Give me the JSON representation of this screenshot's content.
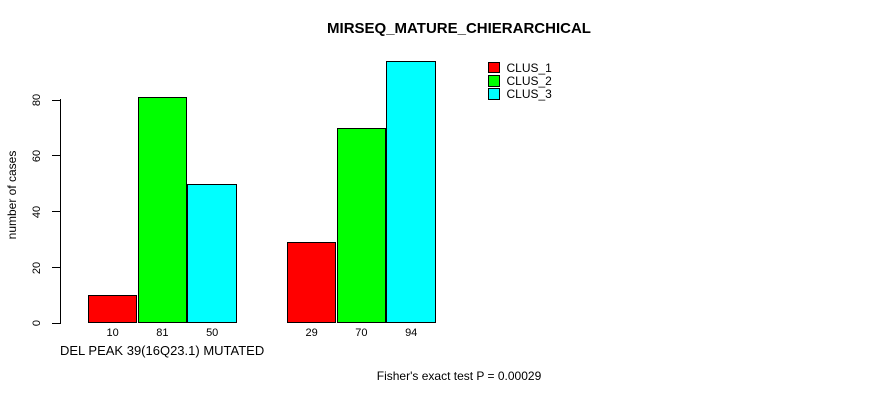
{
  "chart_data": {
    "type": "bar",
    "title": "MIRSEQ_MATURE_CHIERARCHICAL",
    "ylabel": "number of cases",
    "xlabel": "DEL PEAK 39(16Q23.1) MUTATED",
    "annotation": "Fisher's exact test P = 0.00029",
    "yticks": [
      0,
      20,
      40,
      60,
      80
    ],
    "ylim": [
      0,
      95
    ],
    "grid": false,
    "legend_position": "top-right",
    "groups": 2,
    "series": [
      {
        "name": "CLUS_1",
        "color": "#ff0000",
        "values": [
          10,
          29
        ]
      },
      {
        "name": "CLUS_2",
        "color": "#00ff00",
        "values": [
          81,
          70
        ]
      },
      {
        "name": "CLUS_3",
        "color": "#00ffff",
        "values": [
          50,
          94
        ]
      }
    ],
    "bar_value_labels": [
      [
        10,
        81,
        50
      ],
      [
        29,
        70,
        94
      ]
    ],
    "colors": {
      "background": "#ffffff",
      "axis": "#000000",
      "text": "#000000"
    }
  }
}
